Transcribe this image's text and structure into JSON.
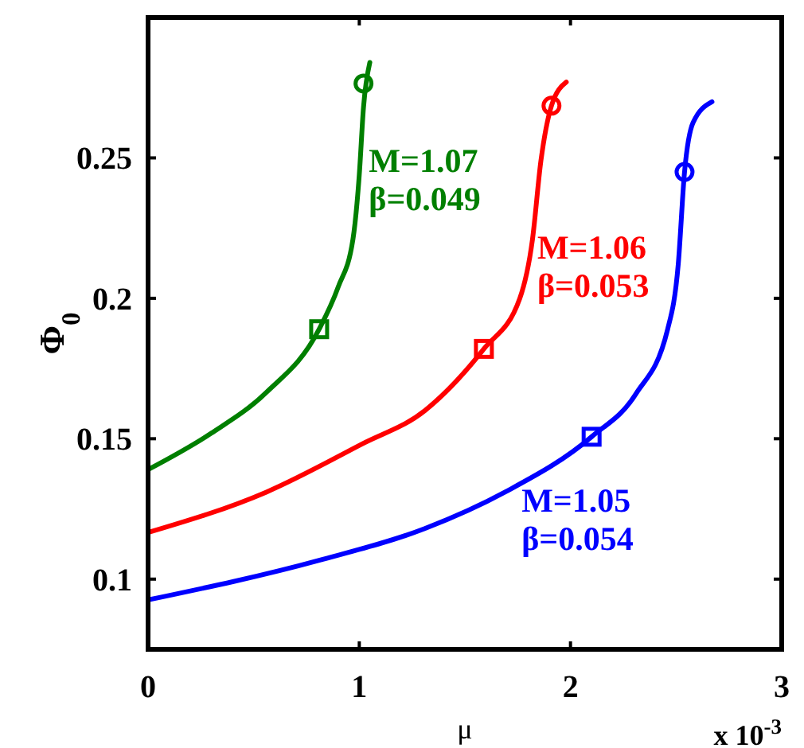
{
  "chart_data": {
    "type": "line",
    "xlabel": "μ",
    "ylabel": "Φ$_{0}$",
    "xlim": [
      0,
      3
    ],
    "ylim": [
      0.075,
      0.3
    ],
    "xticks": [
      0,
      1,
      2,
      3
    ],
    "yticks": [
      0.1,
      0.15,
      0.2,
      0.25
    ],
    "grid": false,
    "line_style": "solid",
    "marker": "none",
    "series": [
      {
        "color": "#007f00",
        "x": [
          0,
          0.3,
          0.56,
          0.81,
          0.9,
          0.97,
          1.0,
          1.02,
          1.05
        ],
        "values": [
          0.139,
          0.152,
          0.1665,
          0.189,
          0.204,
          0.221,
          0.244,
          0.268,
          0.284
        ]
      },
      {
        "color": "#ff0000",
        "x": [
          0,
          0.56,
          1.01,
          1.31,
          1.59,
          1.76,
          1.82,
          1.86,
          1.91,
          1.98
        ],
        "values": [
          0.1166,
          0.131,
          0.148,
          0.16,
          0.182,
          0.2,
          0.221,
          0.249,
          0.2686,
          0.277
        ]
      },
      {
        "color": "#0000ff",
        "x": [
          0,
          0.81,
          1.31,
          1.69,
          2.1,
          2.31,
          2.46,
          2.51,
          2.54,
          2.58,
          2.67
        ],
        "values": [
          0.0926,
          0.1067,
          0.118,
          0.131,
          0.1507,
          0.166,
          0.189,
          0.212,
          0.245,
          0.2625,
          0.27
        ]
      },
      {
        "type": "scatter",
        "marker": "square",
        "color": "#007f00",
        "x": [
          0.81
        ],
        "values": [
          0.189
        ]
      },
      {
        "type": "scatter",
        "marker": "circle",
        "color": "#007f00",
        "x": [
          1.02
        ],
        "values": [
          0.2765
        ]
      },
      {
        "type": "scatter",
        "marker": "square",
        "color": "#ff0000",
        "x": [
          1.59
        ],
        "values": [
          0.182
        ]
      },
      {
        "type": "scatter",
        "marker": "circle",
        "color": "#ff0000",
        "x": [
          1.91
        ],
        "values": [
          0.2686
        ]
      },
      {
        "type": "scatter",
        "marker": "square",
        "color": "#0000ff",
        "x": [
          2.1
        ],
        "values": [
          0.1507
        ]
      },
      {
        "type": "scatter",
        "marker": "circle",
        "color": "#0000ff",
        "x": [
          2.54
        ],
        "values": [
          0.245
        ]
      }
    ],
    "annotations": [
      {
        "text": "M=1.07\nβ=0.049",
        "x": 1.0,
        "y": 0.244
      },
      {
        "text": "M=1.06\nβ=0.053",
        "x": 1.82,
        "y": 0.221
      },
      {
        "text": "M=1.05\nβ=0.054",
        "x": 2.1,
        "y": 0.1507
      },
      "x 10$^{-3}$"
    ]
  }
}
